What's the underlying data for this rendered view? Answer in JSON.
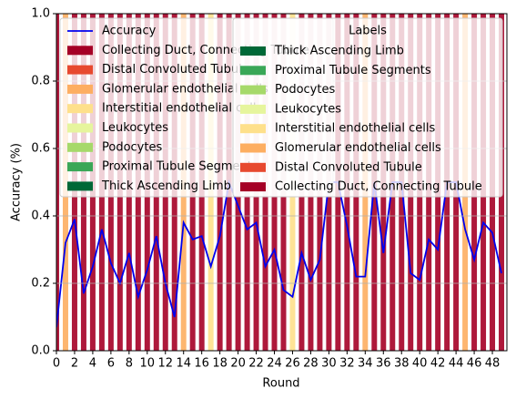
{
  "chart_data": {
    "type": "bar",
    "xlabel": "Round",
    "ylabel": "Accuracy (%)",
    "x": [
      0,
      1,
      2,
      3,
      4,
      5,
      6,
      7,
      8,
      9,
      10,
      11,
      12,
      13,
      14,
      15,
      16,
      17,
      18,
      19,
      20,
      21,
      22,
      23,
      24,
      25,
      26,
      27,
      28,
      29,
      30,
      31,
      32,
      33,
      34,
      35,
      36,
      37,
      38,
      39,
      40,
      41,
      42,
      43,
      44,
      45,
      46,
      47,
      48,
      49
    ],
    "xlim": [
      0,
      49.6
    ],
    "xticks": [
      0,
      2,
      4,
      6,
      8,
      10,
      12,
      14,
      16,
      18,
      20,
      22,
      24,
      26,
      28,
      30,
      32,
      34,
      36,
      38,
      40,
      42,
      44,
      46,
      48
    ],
    "ylim": [
      0,
      1
    ],
    "yticks": [
      {
        "value": 0,
        "label": "0.0"
      },
      {
        "value": 0.2,
        "label": "0.2"
      },
      {
        "value": 0.4,
        "label": "0.4"
      },
      {
        "value": 0.6,
        "label": "0.6"
      },
      {
        "value": 0.8,
        "label": "0.8"
      },
      {
        "value": 1,
        "label": "1.0"
      }
    ],
    "grid": true,
    "legend_title": "Labels",
    "series": [
      {
        "name": "Accuracy",
        "type": "line",
        "color": "#0000ee",
        "values": [
          0.07,
          0.32,
          0.39,
          0.17,
          0.25,
          0.36,
          0.26,
          0.2,
          0.29,
          0.16,
          0.24,
          0.34,
          0.2,
          0.1,
          0.38,
          0.33,
          0.34,
          0.25,
          0.34,
          0.5,
          0.43,
          0.36,
          0.38,
          0.25,
          0.3,
          0.18,
          0.16,
          0.29,
          0.21,
          0.27,
          0.5,
          0.5,
          0.37,
          0.22,
          0.22,
          0.5,
          0.29,
          0.5,
          0.5,
          0.23,
          0.21,
          0.33,
          0.3,
          0.5,
          0.5,
          0.36,
          0.27,
          0.38,
          0.35,
          0.23
        ]
      },
      {
        "name": "Collecting Duct, Connecting Tubule",
        "color": "#a50026",
        "values": [
          1,
          0,
          1,
          1,
          1,
          1,
          1,
          1,
          1,
          1,
          1,
          1,
          1,
          1,
          0,
          1,
          1,
          0,
          1,
          1,
          1,
          1,
          1,
          1,
          1,
          1,
          0,
          1,
          1,
          1,
          1,
          1,
          1,
          1,
          0,
          1,
          1,
          1,
          1,
          1,
          1,
          1,
          1,
          1,
          1,
          0,
          1,
          1,
          1,
          1
        ]
      },
      {
        "name": "Distal Convoluted Tubule",
        "color": "#e7492f",
        "values": [
          0,
          0,
          0,
          0,
          0,
          0,
          0,
          0,
          0,
          0,
          0,
          0,
          0,
          0,
          0,
          0,
          0,
          0,
          0,
          0,
          0,
          0,
          0,
          0,
          0,
          0,
          0,
          0,
          0,
          0,
          0,
          0,
          0,
          0,
          0,
          0,
          0,
          0,
          0,
          0,
          0,
          0,
          0,
          0,
          0,
          0,
          0,
          0,
          0,
          0
        ]
      },
      {
        "name": "Glomerular endothelial cells",
        "color": "#fdae61",
        "values": [
          0,
          1,
          0,
          0,
          0,
          0,
          0,
          0,
          0,
          0,
          0,
          0,
          0,
          0,
          1,
          0,
          0,
          0,
          0,
          0,
          0,
          0,
          0,
          0,
          0,
          0,
          0,
          0,
          0,
          0,
          0,
          0,
          0,
          0,
          1,
          0,
          0,
          0,
          0,
          0,
          0,
          0,
          0,
          0,
          0,
          1,
          0,
          0,
          0,
          0
        ]
      },
      {
        "name": "Interstitial endothelial cells",
        "color": "#fee08b",
        "values": [
          0,
          0,
          0,
          0,
          0,
          0,
          0,
          0,
          0,
          0,
          0,
          0,
          0,
          0,
          0,
          0,
          0,
          1,
          0,
          0,
          0,
          0,
          0,
          0,
          0,
          0,
          1,
          0,
          0,
          0,
          0,
          0,
          0,
          0,
          0,
          0,
          0,
          0,
          0,
          0,
          0,
          0,
          0,
          0,
          0,
          0,
          0,
          0,
          0,
          0
        ]
      },
      {
        "name": "Leukocytes",
        "color": "#e6f59d",
        "values": [
          0,
          0,
          0,
          0,
          0,
          0,
          0,
          0,
          0,
          0,
          0,
          0,
          0,
          0,
          0,
          0,
          0,
          0,
          0,
          0,
          0,
          0,
          0,
          0,
          0,
          0,
          0,
          0,
          0,
          0,
          0,
          0,
          0,
          0,
          0,
          0,
          0,
          0,
          0,
          0,
          0,
          0,
          0,
          0,
          0,
          0,
          0,
          0,
          0,
          0
        ]
      },
      {
        "name": "Podocytes",
        "color": "#a6d96a",
        "values": [
          0,
          0,
          0,
          0,
          0,
          0,
          0,
          0,
          0,
          0,
          0,
          0,
          0,
          0,
          0,
          0,
          0,
          0,
          0,
          0,
          0,
          0,
          0,
          0,
          0,
          0,
          0,
          0,
          0,
          0,
          0,
          0,
          0,
          0,
          0,
          0,
          0,
          0,
          0,
          0,
          0,
          0,
          0,
          0,
          0,
          0,
          0,
          0,
          0,
          0
        ]
      },
      {
        "name": "Proximal Tubule Segments",
        "color": "#3aa757",
        "values": [
          0,
          0,
          0,
          0,
          0,
          0,
          0,
          0,
          0,
          0,
          0,
          0,
          0,
          0,
          0,
          0,
          0,
          0,
          0,
          0,
          0,
          0,
          0,
          0,
          0,
          0,
          0,
          0,
          0,
          0,
          0,
          0,
          0,
          0,
          0,
          0,
          0,
          0,
          0,
          0,
          0,
          0,
          0,
          0,
          0,
          0,
          0,
          0,
          0,
          0
        ]
      },
      {
        "name": "Thick Ascending Limb",
        "color": "#006837",
        "values": [
          0,
          0,
          0,
          0,
          0,
          0,
          0,
          0,
          0,
          0,
          0,
          0,
          0,
          0,
          0,
          0,
          0,
          0,
          0,
          0,
          0,
          0,
          0,
          0,
          0,
          0,
          0,
          0,
          0,
          0,
          0,
          0,
          0,
          0,
          0,
          0,
          0,
          0,
          0,
          0,
          0,
          0,
          0,
          0,
          0,
          0,
          0,
          0,
          0,
          0
        ]
      }
    ]
  }
}
